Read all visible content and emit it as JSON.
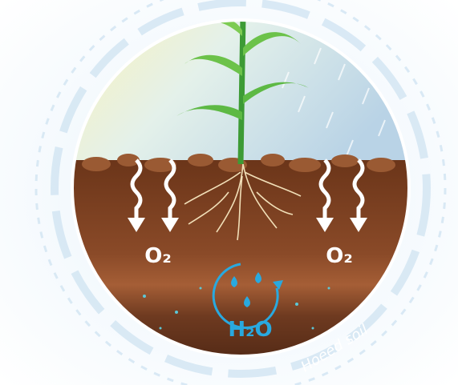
{
  "labels": {
    "oxygen_left": "O₂",
    "oxygen_right": "O₂",
    "water": "H₂O",
    "soil": "Hoeed soil"
  }
}
